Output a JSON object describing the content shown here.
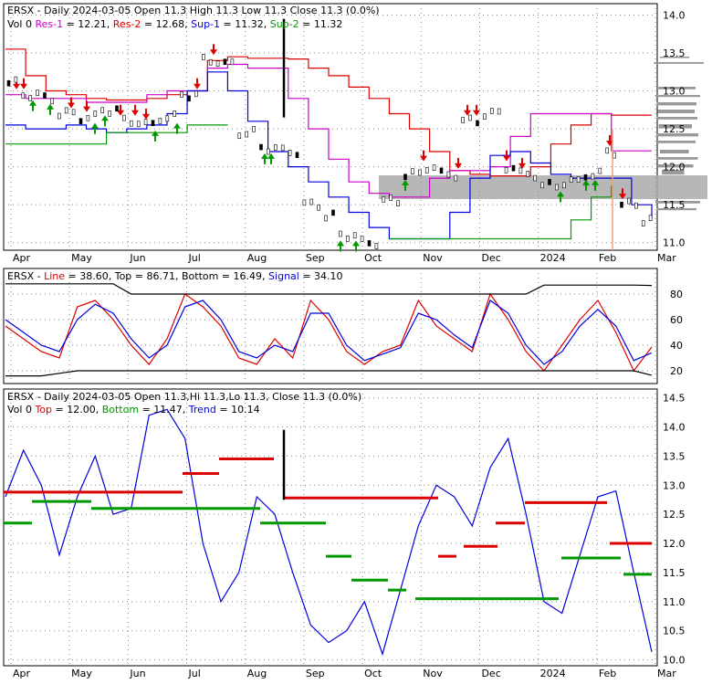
{
  "chart_data": [
    {
      "type": "line",
      "panel": "price",
      "ticker": "ERSX",
      "header_parts": [
        {
          "text": "ERSX - Daily 2024-03-05 Open 11.3  High 11.3  Low 11.3  Close 11.3 (0.0%)",
          "color": "#000000"
        }
      ],
      "header_line2": [
        {
          "text": "Vol 0 ",
          "color": "#000000"
        },
        {
          "text": "Res-1",
          "color": "#cc00cc"
        },
        {
          "text": " = 12.21, ",
          "color": "#000000"
        },
        {
          "text": "Res-2",
          "color": "#dd0000"
        },
        {
          "text": " = 12.68, ",
          "color": "#000000"
        },
        {
          "text": "Sup-1",
          "color": "#0000dd"
        },
        {
          "text": " = 11.32, ",
          "color": "#000000"
        },
        {
          "text": "Sup-2",
          "color": "#009900"
        },
        {
          "text": " = 11.32",
          "color": "#000000"
        }
      ],
      "ylim": [
        10.9,
        14.15
      ],
      "yticks": [
        "14.0",
        "13.5",
        "13.0",
        "12.5",
        "12.0",
        "11.5",
        "11.0"
      ],
      "ytick_values": [
        14.0,
        13.5,
        13.0,
        12.5,
        12.0,
        11.5,
        11.0
      ],
      "series": [
        {
          "name": "Res-2",
          "color": "#dd0000",
          "values": [
            13.55,
            13.2,
            13.0,
            12.95,
            12.9,
            12.88,
            12.88,
            12.9,
            12.95,
            13.0,
            13.4,
            13.45,
            13.43,
            13.43,
            13.42,
            13.3,
            13.2,
            13.05,
            12.9,
            12.7,
            12.5,
            12.2,
            11.95,
            11.9,
            11.88,
            11.88,
            12.0,
            12.3,
            12.55,
            12.7,
            12.68,
            12.68,
            12.68
          ]
        },
        {
          "name": "Res-1",
          "color": "#cc00cc",
          "values": [
            12.95,
            12.9,
            12.9,
            12.9,
            12.85,
            12.85,
            12.85,
            12.95,
            13.0,
            13.0,
            13.3,
            13.35,
            13.3,
            13.3,
            12.9,
            12.5,
            12.1,
            11.8,
            11.65,
            11.6,
            11.6,
            11.85,
            11.95,
            11.95,
            12.0,
            12.4,
            12.7,
            12.7,
            12.7,
            12.7,
            12.21,
            12.21,
            12.21
          ]
        },
        {
          "name": "Sup-1",
          "color": "#0000dd",
          "values": [
            12.55,
            12.5,
            12.5,
            12.55,
            12.5,
            12.45,
            12.5,
            12.55,
            12.7,
            13.0,
            13.25,
            13.0,
            12.6,
            12.2,
            12.0,
            11.8,
            11.6,
            11.4,
            11.2,
            11.05,
            11.05,
            11.05,
            11.4,
            11.85,
            12.15,
            12.2,
            12.05,
            11.9,
            11.85,
            11.85,
            11.85,
            11.5,
            11.32
          ]
        },
        {
          "name": "Sup-2",
          "color": "#009900",
          "values": [
            12.3,
            12.3,
            12.3,
            12.3,
            12.3,
            12.45,
            12.45,
            12.45,
            12.45,
            12.55,
            12.55,
            12.55,
            null,
            null,
            null,
            null,
            null,
            null,
            null,
            11.05,
            11.05,
            11.05,
            11.05,
            11.05,
            11.05,
            11.05,
            11.05,
            11.05,
            11.3,
            11.6,
            11.75,
            null,
            null
          ]
        }
      ]
    },
    {
      "type": "line",
      "panel": "oscillator",
      "header_parts": [
        {
          "text": "ERSX - ",
          "color": "#000000"
        },
        {
          "text": "Line",
          "color": "#dd0000"
        },
        {
          "text": " = 38.60, ",
          "color": "#000000"
        },
        {
          "text": "Top",
          "color": "#000000"
        },
        {
          "text": " = 86.71, ",
          "color": "#000000"
        },
        {
          "text": "Bottom",
          "color": "#000000"
        },
        {
          "text": " = 16.49, ",
          "color": "#000000"
        },
        {
          "text": "Signal",
          "color": "#0000dd"
        },
        {
          "text": " = 34.10",
          "color": "#000000"
        }
      ],
      "ylim": [
        10,
        100
      ],
      "yticks": [
        "80",
        "60",
        "40",
        "20"
      ],
      "ytick_values": [
        80,
        60,
        40,
        20
      ],
      "series": [
        {
          "name": "Line",
          "color": "#dd0000",
          "values": [
            55,
            45,
            35,
            30,
            70,
            75,
            60,
            40,
            25,
            45,
            80,
            70,
            55,
            30,
            25,
            45,
            30,
            75,
            60,
            35,
            25,
            35,
            40,
            75,
            55,
            45,
            35,
            80,
            60,
            35,
            20,
            40,
            60,
            75,
            50,
            20,
            38.6
          ]
        },
        {
          "name": "Signal",
          "color": "#0000dd",
          "values": [
            60,
            50,
            40,
            35,
            60,
            72,
            65,
            45,
            30,
            40,
            70,
            75,
            60,
            35,
            30,
            40,
            35,
            65,
            65,
            40,
            28,
            33,
            38,
            65,
            60,
            48,
            38,
            75,
            65,
            40,
            25,
            35,
            55,
            68,
            55,
            28,
            34.1
          ]
        },
        {
          "name": "Top",
          "color": "#000000",
          "values": [
            88,
            88,
            88,
            88,
            88,
            88,
            88,
            80,
            80,
            80,
            80,
            80,
            80,
            80,
            80,
            80,
            80,
            80,
            80,
            80,
            80,
            80,
            80,
            80,
            80,
            80,
            80,
            80,
            80,
            80,
            87,
            87,
            87,
            87,
            87,
            87,
            86.71
          ]
        },
        {
          "name": "Bottom",
          "color": "#000000",
          "values": [
            16,
            16,
            16,
            18,
            20,
            20,
            20,
            20,
            20,
            20,
            20,
            20,
            20,
            20,
            20,
            20,
            20,
            20,
            20,
            20,
            20,
            20,
            20,
            20,
            20,
            20,
            20,
            20,
            20,
            20,
            20,
            20,
            20,
            20,
            20,
            20,
            16.49
          ]
        }
      ]
    },
    {
      "type": "line",
      "panel": "trend",
      "header_parts": [
        {
          "text": "ERSX - Daily 2024-03-05 Open 11.3,Hi 11.3,Lo 11.3, Close 11.3 (0.0%)",
          "color": "#000000"
        }
      ],
      "header_line2": [
        {
          "text": "Vol 0 ",
          "color": "#000000"
        },
        {
          "text": "Top",
          "color": "#dd0000"
        },
        {
          "text": " = 12.00, ",
          "color": "#000000"
        },
        {
          "text": "Bottom",
          "color": "#009900"
        },
        {
          "text": " = 11.47, ",
          "color": "#000000"
        },
        {
          "text": "Trend",
          "color": "#0000dd"
        },
        {
          "text": " = 10.14",
          "color": "#000000"
        }
      ],
      "ylim": [
        9.9,
        14.65
      ],
      "yticks": [
        "14.5",
        "14.0",
        "13.5",
        "13.0",
        "12.5",
        "12.0",
        "11.5",
        "11.0",
        "10.5",
        "10.0"
      ],
      "ytick_values": [
        14.5,
        14.0,
        13.5,
        13.0,
        12.5,
        12.0,
        11.5,
        11.0,
        10.5,
        10.0
      ],
      "series": [
        {
          "name": "Trend",
          "color": "#0000dd",
          "values": [
            12.8,
            13.6,
            13.0,
            11.8,
            12.8,
            13.5,
            12.5,
            12.6,
            14.2,
            14.3,
            13.8,
            12.0,
            11.0,
            11.5,
            12.8,
            12.5,
            11.5,
            10.6,
            10.3,
            10.5,
            11.0,
            10.1,
            11.2,
            12.3,
            13.0,
            12.8,
            12.3,
            13.3,
            13.8,
            12.5,
            11.0,
            10.8,
            11.8,
            12.8,
            12.9,
            11.5,
            10.14
          ]
        }
      ]
    }
  ],
  "x_axis": {
    "months": [
      "Apr",
      "May",
      "Jun",
      "Jul",
      "Aug",
      "Sep",
      "Oct",
      "Nov",
      "Dec",
      "2024",
      "Feb",
      "Mar"
    ]
  },
  "colors": {
    "up_arrow": "#009900",
    "down_arrow": "#dd0000",
    "volume_band": "#aaaaaa",
    "grid": "#888888"
  }
}
